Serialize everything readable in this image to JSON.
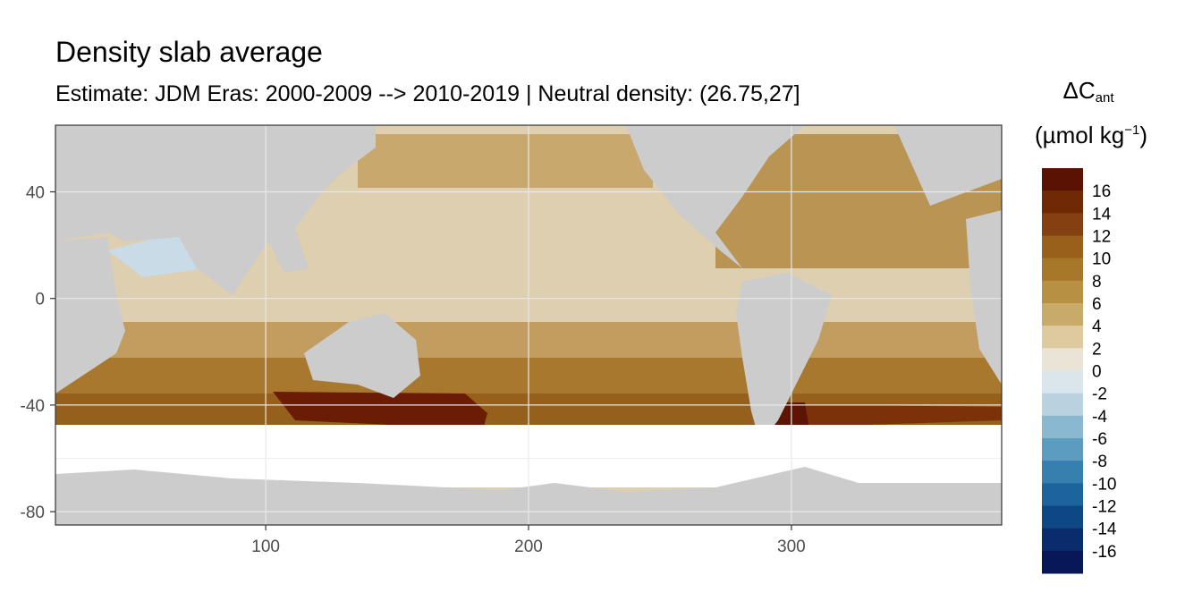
{
  "title": "Density slab average",
  "subtitle": "Estimate: JDM Eras: 2000-2009 --> 2010-2019 | Neutral density: (26.75,27]",
  "legend": {
    "title_symbol": "ΔC",
    "title_subscript": "ant",
    "unit_prefix": "(µmol kg",
    "unit_superscript": "−1",
    "unit_suffix": ")",
    "labels": [
      "16",
      "14",
      "12",
      "10",
      "8",
      "6",
      "4",
      "2",
      "0",
      "-2",
      "-4",
      "-6",
      "-8",
      "-10",
      "-12",
      "-14",
      "-16"
    ],
    "colors": [
      "#5a1202",
      "#6f2a05",
      "#844010",
      "#98601b",
      "#a8782a",
      "#b89044",
      "#c8aa6a",
      "#ddca9e",
      "#eae4d6",
      "#dbe6ec",
      "#b8d2e0",
      "#8ab8d0",
      "#5c9cc0",
      "#3680b0",
      "#1c649c",
      "#0e4884",
      "#082c6c",
      "#061858"
    ]
  },
  "axes": {
    "x_ticks": [
      "100",
      "200",
      "300"
    ],
    "y_ticks": [
      "40",
      "0",
      "-40",
      "-80"
    ]
  },
  "chart_data": {
    "type": "heatmap",
    "title": "Density slab average",
    "subtitle": "Estimate: JDM Eras: 2000-2009 --> 2010-2019 | Neutral density: (26.75,27]",
    "xlim": [
      20,
      380
    ],
    "ylim": [
      -85,
      65
    ],
    "x_ticks": [
      100,
      200,
      300
    ],
    "y_ticks": [
      40,
      0,
      -40,
      -80
    ],
    "colorbar_range": [
      -18,
      18
    ],
    "colorbar_step": 2,
    "land_color": "#cccccc",
    "missing_color": "#ffffff",
    "grid": true
  }
}
